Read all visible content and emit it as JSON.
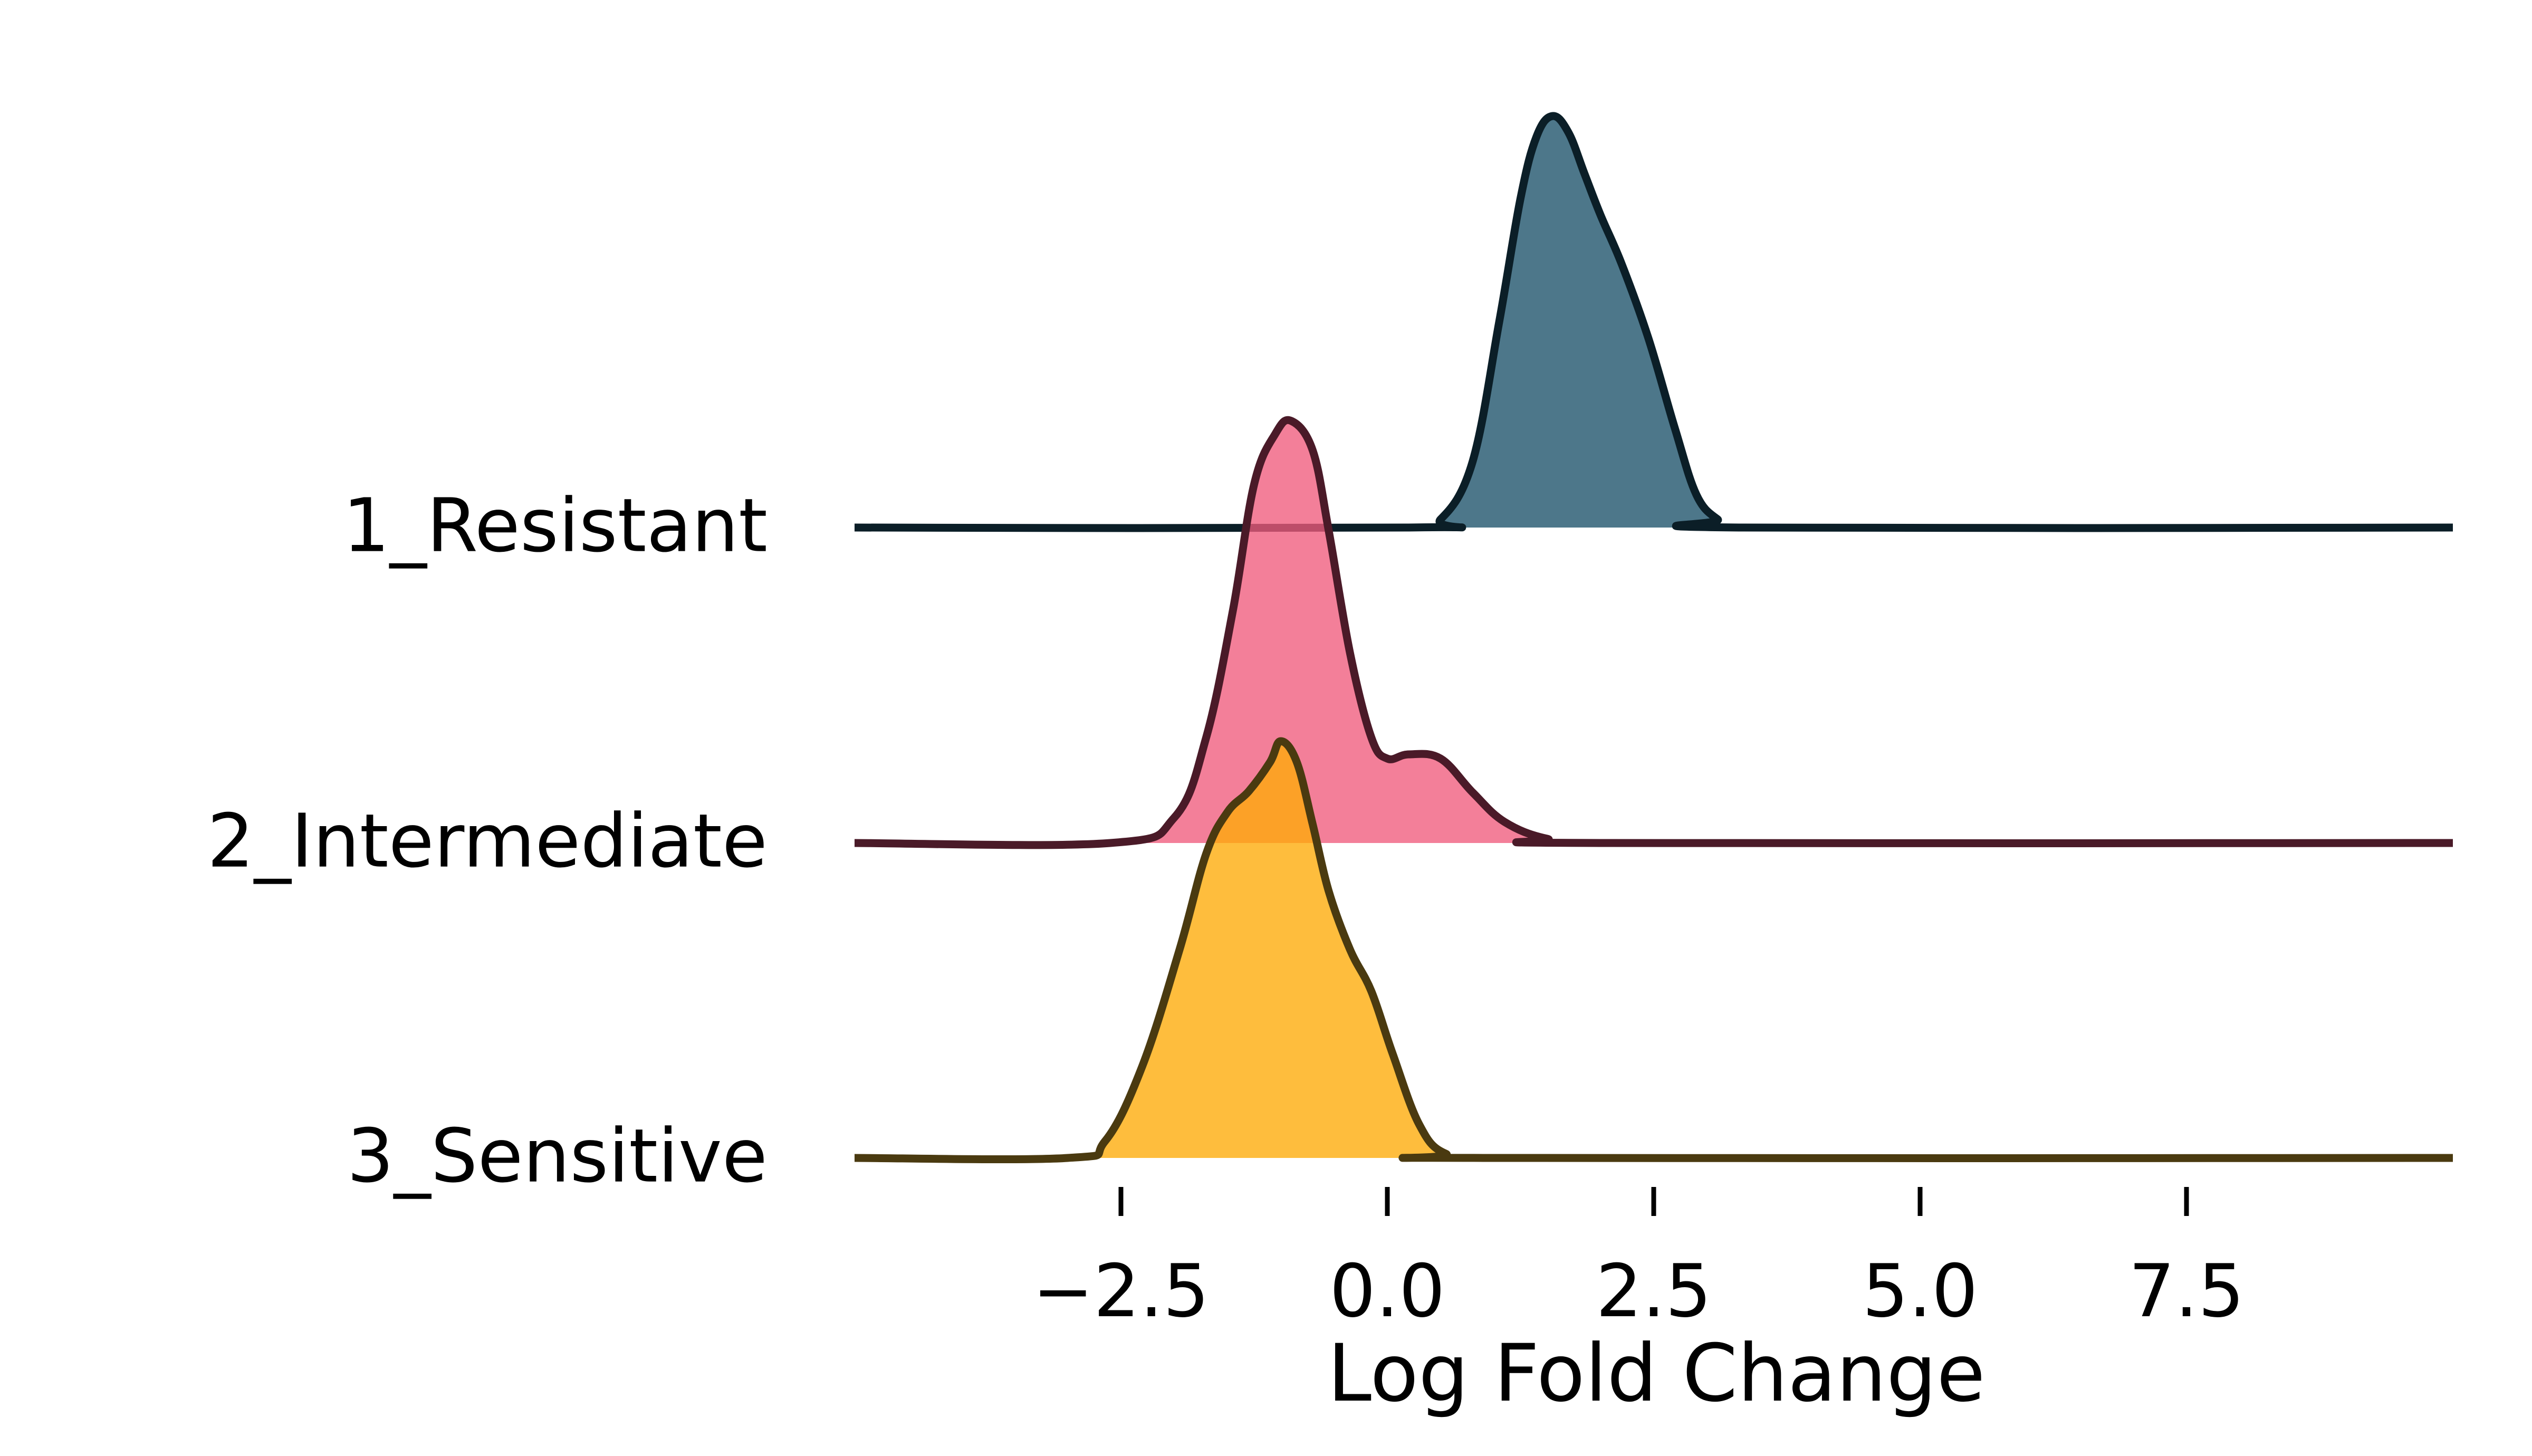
{
  "chart_data": {
    "type": "ridgeline",
    "title": "",
    "xlabel": "Log Fold Change",
    "ylabel": "",
    "xlim": [
      -5.0,
      10.0
    ],
    "xticks": [
      -2.5,
      0.0,
      2.5,
      5.0,
      7.5
    ],
    "xtick_labels": [
      "−2.5",
      "0.0",
      "2.5",
      "5.0",
      "7.5"
    ],
    "grid": false,
    "series": [
      {
        "name": "1_Resistant",
        "fill": "#1b5169",
        "line": "#0b1e27",
        "x": [
          -5.0,
          0.2,
          0.5,
          0.8,
          1.05,
          1.25,
          1.4,
          1.55,
          1.7,
          1.85,
          2.0,
          2.2,
          2.45,
          2.7,
          2.9,
          3.1,
          3.3,
          10.0
        ],
        "density": [
          0.0,
          0.0,
          0.02,
          0.16,
          0.5,
          0.8,
          0.95,
          1.0,
          0.96,
          0.86,
          0.76,
          0.64,
          0.46,
          0.24,
          0.08,
          0.02,
          0.0,
          0.0
        ]
      },
      {
        "name": "2_Intermediate",
        "fill": "#ef5b7c",
        "line": "#4a1a28",
        "x": [
          -5.0,
          -2.6,
          -2.0,
          -1.7,
          -1.45,
          -1.25,
          -1.05,
          -0.9,
          -0.7,
          -0.55,
          -0.35,
          -0.15,
          0.0,
          0.2,
          0.5,
          0.8,
          1.1,
          1.5,
          2.0,
          10.0
        ],
        "density": [
          0.0,
          0.0,
          0.06,
          0.25,
          0.55,
          0.85,
          0.97,
          1.0,
          0.93,
          0.74,
          0.45,
          0.25,
          0.2,
          0.21,
          0.2,
          0.12,
          0.05,
          0.01,
          0.0,
          0.0
        ]
      },
      {
        "name": "3_Sensitive",
        "fill": "#feab07",
        "line": "#4a3a10",
        "x": [
          -5.0,
          -3.0,
          -2.65,
          -2.3,
          -1.95,
          -1.7,
          -1.5,
          -1.3,
          -1.1,
          -1.0,
          -0.85,
          -0.7,
          -0.55,
          -0.35,
          -0.15,
          0.05,
          0.3,
          0.55,
          1.0,
          10.0
        ],
        "density": [
          0.0,
          0.0,
          0.04,
          0.22,
          0.5,
          0.73,
          0.83,
          0.88,
          0.95,
          1.0,
          0.95,
          0.8,
          0.64,
          0.5,
          0.4,
          0.25,
          0.08,
          0.01,
          0.0,
          0.0
        ]
      }
    ]
  }
}
